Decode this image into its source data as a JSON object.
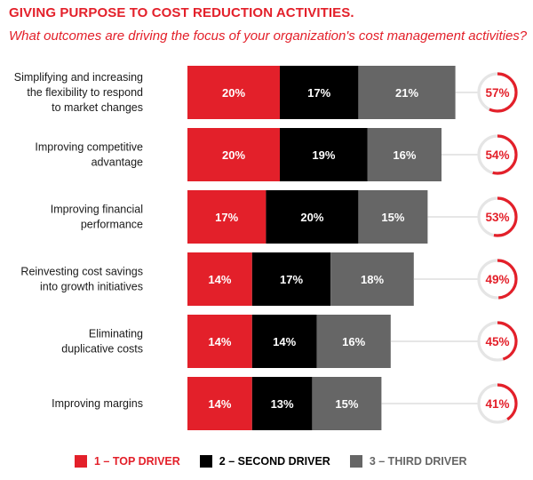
{
  "colors": {
    "top": "#e3202a",
    "second": "#000000",
    "third": "#666666",
    "ring_track": "#e5e5e5",
    "accent": "#e3202a"
  },
  "chart_data": {
    "type": "bar",
    "orientation": "horizontal",
    "stacked": true,
    "title": "GIVING PURPOSE TO COST REDUCTION ACTIVITIES.",
    "subtitle": "What outcomes are driving the focus of your organization's cost management activities?",
    "categories": [
      [
        "Simplifying and increasing",
        "the flexibility to respond",
        "to market changes"
      ],
      [
        "Improving competitive",
        "advantage"
      ],
      [
        "Improving financial",
        "performance"
      ],
      [
        "Reinvesting cost savings",
        "into growth initiatives"
      ],
      [
        "Eliminating",
        "duplicative costs"
      ],
      [
        "Improving margins"
      ]
    ],
    "series": [
      {
        "name": "1 – TOP DRIVER",
        "color_key": "top",
        "values": [
          20,
          20,
          17,
          14,
          14,
          14
        ],
        "labels": [
          "20%",
          "20%",
          "17%",
          "14%",
          "14%",
          "14%"
        ]
      },
      {
        "name": "2 – SECOND DRIVER",
        "color_key": "second",
        "values": [
          17,
          19,
          20,
          17,
          14,
          13
        ],
        "labels": [
          "17%",
          "19%",
          "20%",
          "17%",
          "14%",
          "13%"
        ]
      },
      {
        "name": "3 – THIRD DRIVER",
        "color_key": "third",
        "values": [
          21,
          16,
          15,
          18,
          16,
          15
        ],
        "labels": [
          "21%",
          "16%",
          "15%",
          "18%",
          "16%",
          "15%"
        ]
      }
    ],
    "totals": [
      57,
      54,
      53,
      49,
      45,
      41
    ],
    "total_labels": [
      "57%",
      "54%",
      "53%",
      "49%",
      "45%",
      "41%"
    ],
    "legend_position": "bottom"
  }
}
